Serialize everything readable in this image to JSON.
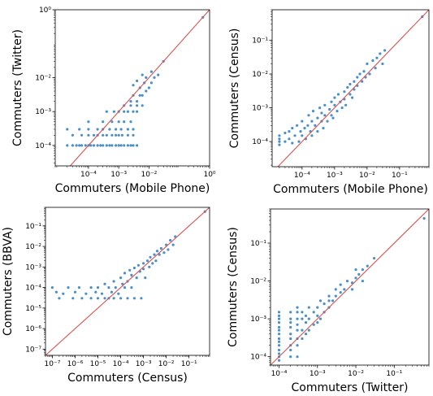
{
  "colors": {
    "points": "#4a90c8",
    "identity_line": "#d9534f",
    "frame": "#000000"
  },
  "chart_data": [
    {
      "type": "scatter",
      "panel": "top-left",
      "xlabel": "Commuters (Mobile Phone)",
      "ylabel": "Commuters (Twitter)",
      "xscale": "log",
      "yscale": "log",
      "xlim": [
        8e-06,
        1
      ],
      "ylim": [
        2.5e-05,
        1
      ],
      "x_ticks": [
        {
          "v": 0.0001,
          "label": "10⁻⁴"
        },
        {
          "v": 0.001,
          "label": "10⁻³"
        },
        {
          "v": 0.01,
          "label": "10⁻²"
        },
        {
          "v": 1,
          "label": "10⁰"
        }
      ],
      "y_ticks": [
        {
          "v": 0.0001,
          "label": "10⁻⁴"
        },
        {
          "v": 0.001,
          "label": "10⁻³"
        },
        {
          "v": 0.01,
          "label": "10⁻²"
        },
        {
          "v": 1,
          "label": "10⁰"
        }
      ],
      "identity_line": true,
      "points": [
        [
          2e-05,
          0.0001
        ],
        [
          3e-05,
          0.0001
        ],
        [
          4e-05,
          0.0001
        ],
        [
          5e-05,
          0.0001
        ],
        [
          6e-05,
          0.0001
        ],
        [
          8e-05,
          0.0001
        ],
        [
          0.0001,
          0.0001
        ],
        [
          0.00012,
          0.0001
        ],
        [
          0.00015,
          0.0001
        ],
        [
          0.0002,
          0.0001
        ],
        [
          0.00025,
          0.0001
        ],
        [
          0.0003,
          0.0001
        ],
        [
          0.0004,
          0.0001
        ],
        [
          0.0005,
          0.0001
        ],
        [
          0.0006,
          0.0001
        ],
        [
          0.0008,
          0.0001
        ],
        [
          0.001,
          0.0001
        ],
        [
          0.0012,
          0.0001
        ],
        [
          0.0015,
          0.0001
        ],
        [
          0.002,
          0.0001
        ],
        [
          0.0025,
          0.0001
        ],
        [
          0.003,
          0.0001
        ],
        [
          0.004,
          0.0001
        ],
        [
          3e-05,
          0.0002
        ],
        [
          6e-05,
          0.0002
        ],
        [
          0.0001,
          0.0002
        ],
        [
          0.00015,
          0.0002
        ],
        [
          0.0002,
          0.0002
        ],
        [
          0.0003,
          0.0002
        ],
        [
          0.0004,
          0.0002
        ],
        [
          0.0006,
          0.0002
        ],
        [
          0.0008,
          0.0002
        ],
        [
          0.001,
          0.0002
        ],
        [
          0.0013,
          0.0002
        ],
        [
          0.002,
          0.0002
        ],
        [
          0.003,
          0.0002
        ],
        [
          2e-05,
          0.0003
        ],
        [
          5e-05,
          0.0003
        ],
        [
          0.0001,
          0.0003
        ],
        [
          0.0002,
          0.0003
        ],
        [
          0.0003,
          0.0003
        ],
        [
          0.0005,
          0.0003
        ],
        [
          0.0008,
          0.0003
        ],
        [
          0.0012,
          0.0003
        ],
        [
          0.002,
          0.0003
        ],
        [
          0.003,
          0.0003
        ],
        [
          0.0001,
          0.0005
        ],
        [
          0.0003,
          0.0005
        ],
        [
          0.0006,
          0.0005
        ],
        [
          0.001,
          0.0005
        ],
        [
          0.0015,
          0.0005
        ],
        [
          0.0025,
          0.0005
        ],
        [
          0.0004,
          0.001
        ],
        [
          0.0007,
          0.001
        ],
        [
          0.001,
          0.001
        ],
        [
          0.0015,
          0.001
        ],
        [
          0.002,
          0.001
        ],
        [
          0.003,
          0.001
        ],
        [
          0.004,
          0.001
        ],
        [
          0.0015,
          0.0015
        ],
        [
          0.0025,
          0.0015
        ],
        [
          0.004,
          0.0015
        ],
        [
          0.006,
          0.0015
        ],
        [
          0.0025,
          0.002
        ],
        [
          0.004,
          0.002
        ],
        [
          0.005,
          0.003
        ],
        [
          0.006,
          0.003
        ],
        [
          0.003,
          0.003
        ],
        [
          0.008,
          0.004
        ],
        [
          0.005,
          0.005
        ],
        [
          0.01,
          0.005
        ],
        [
          0.003,
          0.006
        ],
        [
          0.007,
          0.007
        ],
        [
          0.012,
          0.007
        ],
        [
          0.004,
          0.008
        ],
        [
          0.008,
          0.01
        ],
        [
          0.015,
          0.01
        ],
        [
          0.006,
          0.012
        ],
        [
          0.02,
          0.012
        ],
        [
          0.012,
          0.015
        ],
        [
          0.03,
          0.03
        ],
        [
          0.6,
          0.6
        ]
      ]
    },
    {
      "type": "scatter",
      "panel": "top-right",
      "xlabel": "Commuters (Mobile Phone)",
      "ylabel": "Commuters (Census)",
      "xscale": "log",
      "yscale": "log",
      "xlim": [
        1.2e-05,
        0.8
      ],
      "ylim": [
        1.8e-05,
        0.8
      ],
      "x_ticks": [
        {
          "v": 0.0001,
          "label": "10⁻⁴"
        },
        {
          "v": 0.001,
          "label": "10⁻³"
        },
        {
          "v": 0.01,
          "label": "10⁻²"
        },
        {
          "v": 0.1,
          "label": "10⁻¹"
        }
      ],
      "y_ticks": [
        {
          "v": 0.0001,
          "label": "10⁻⁴"
        },
        {
          "v": 0.001,
          "label": "10⁻³"
        },
        {
          "v": 0.01,
          "label": "10⁻²"
        },
        {
          "v": 0.1,
          "label": "10⁻¹"
        }
      ],
      "identity_line": true,
      "points": [
        [
          2e-05,
          0.0001
        ],
        [
          2e-05,
          0.00012
        ],
        [
          2e-05,
          0.00015
        ],
        [
          2e-05,
          8e-05
        ],
        [
          3e-05,
          0.0001
        ],
        [
          3e-05,
          0.00018
        ],
        [
          4e-05,
          0.00012
        ],
        [
          4e-05,
          0.0002
        ],
        [
          5e-05,
          9e-05
        ],
        [
          5e-05,
          0.00025
        ],
        [
          6e-05,
          0.00015
        ],
        [
          7e-05,
          0.0003
        ],
        [
          8e-05,
          0.0001
        ],
        [
          9e-05,
          0.0002
        ],
        [
          0.0001,
          0.00015
        ],
        [
          0.0001,
          0.0004
        ],
        [
          0.00012,
          0.00025
        ],
        [
          0.00013,
          0.00012
        ],
        [
          0.00015,
          0.0003
        ],
        [
          0.00016,
          0.0006
        ],
        [
          0.00018,
          0.0002
        ],
        [
          0.0002,
          0.0004
        ],
        [
          0.0002,
          0.00015
        ],
        [
          0.00022,
          0.0008
        ],
        [
          0.00025,
          0.0003
        ],
        [
          0.0003,
          0.0005
        ],
        [
          0.0003,
          0.0002
        ],
        [
          0.00035,
          0.001
        ],
        [
          0.0004,
          0.0004
        ],
        [
          0.0004,
          0.0007
        ],
        [
          0.00045,
          0.00025
        ],
        [
          0.0005,
          0.0006
        ],
        [
          0.0005,
          0.0012
        ],
        [
          0.0006,
          0.0004
        ],
        [
          0.0007,
          0.0009
        ],
        [
          0.0008,
          0.0006
        ],
        [
          0.0008,
          0.0015
        ],
        [
          0.0009,
          0.0005
        ],
        [
          0.001,
          0.0012
        ],
        [
          0.001,
          0.002
        ],
        [
          0.0012,
          0.0008
        ],
        [
          0.0013,
          0.0025
        ],
        [
          0.0015,
          0.0015
        ],
        [
          0.0017,
          0.001
        ],
        [
          0.002,
          0.003
        ],
        [
          0.002,
          0.0018
        ],
        [
          0.0022,
          0.0012
        ],
        [
          0.0025,
          0.004
        ],
        [
          0.003,
          0.0025
        ],
        [
          0.003,
          0.005
        ],
        [
          0.0035,
          0.002
        ],
        [
          0.004,
          0.006
        ],
        [
          0.004,
          0.0035
        ],
        [
          0.005,
          0.008
        ],
        [
          0.005,
          0.0045
        ],
        [
          0.006,
          0.01
        ],
        [
          0.007,
          0.006
        ],
        [
          0.008,
          0.012
        ],
        [
          0.009,
          0.008
        ],
        [
          0.01,
          0.02
        ],
        [
          0.012,
          0.01
        ],
        [
          0.015,
          0.025
        ],
        [
          0.018,
          0.015
        ],
        [
          0.02,
          0.03
        ],
        [
          0.025,
          0.04
        ],
        [
          0.03,
          0.02
        ],
        [
          0.035,
          0.05
        ],
        [
          0.5,
          0.5
        ]
      ]
    },
    {
      "type": "scatter",
      "panel": "bottom-left",
      "xlabel": "Commuters (Census)",
      "ylabel": "Commuters (BBVA)",
      "xscale": "log",
      "yscale": "log",
      "xlim": [
        5e-08,
        0.8
      ],
      "ylim": [
        5e-08,
        0.8
      ],
      "x_ticks": [
        {
          "v": 1e-07,
          "label": "10⁻⁷"
        },
        {
          "v": 1e-06,
          "label": "10⁻⁶"
        },
        {
          "v": 1e-05,
          "label": "10⁻⁵"
        },
        {
          "v": 0.0001,
          "label": "10⁻⁴"
        },
        {
          "v": 0.001,
          "label": "10⁻³"
        },
        {
          "v": 0.01,
          "label": "10⁻²"
        },
        {
          "v": 0.1,
          "label": "10⁻¹"
        }
      ],
      "y_ticks": [
        {
          "v": 1e-07,
          "label": "10⁻⁷"
        },
        {
          "v": 1e-06,
          "label": "10⁻⁶"
        },
        {
          "v": 1e-05,
          "label": "10⁻⁵"
        },
        {
          "v": 0.0001,
          "label": "10⁻⁴"
        },
        {
          "v": 0.001,
          "label": "10⁻³"
        },
        {
          "v": 0.01,
          "label": "10⁻²"
        },
        {
          "v": 0.1,
          "label": "10⁻¹"
        }
      ],
      "identity_line": true,
      "points": [
        [
          1e-07,
          0.0001
        ],
        [
          1.5e-07,
          6e-05
        ],
        [
          2e-07,
          3e-05
        ],
        [
          3e-07,
          5e-05
        ],
        [
          5e-07,
          0.0001
        ],
        [
          8e-07,
          3e-05
        ],
        [
          1e-06,
          6e-05
        ],
        [
          1.5e-06,
          0.0001
        ],
        [
          2e-06,
          3e-05
        ],
        [
          3e-06,
          5e-05
        ],
        [
          5e-06,
          3e-05
        ],
        [
          5e-06,
          0.0001
        ],
        [
          8e-06,
          6e-05
        ],
        [
          1e-05,
          3e-05
        ],
        [
          1e-05,
          0.0001
        ],
        [
          1.5e-05,
          5e-05
        ],
        [
          2e-05,
          3e-05
        ],
        [
          2e-05,
          0.00015
        ],
        [
          3e-05,
          0.0001
        ],
        [
          3e-05,
          3e-05
        ],
        [
          4e-05,
          6e-05
        ],
        [
          5e-05,
          0.0002
        ],
        [
          5e-05,
          3e-05
        ],
        [
          6e-05,
          0.0001
        ],
        [
          8e-05,
          5e-05
        ],
        [
          0.0001,
          0.0003
        ],
        [
          0.0001,
          3e-05
        ],
        [
          0.00012,
          0.00015
        ],
        [
          0.00015,
          0.0001
        ],
        [
          0.00015,
          0.0005
        ],
        [
          0.0002,
          3e-05
        ],
        [
          0.0002,
          0.0002
        ],
        [
          0.00025,
          0.0007
        ],
        [
          0.0003,
          0.0001
        ],
        [
          0.0003,
          0.0004
        ],
        [
          0.0004,
          3e-05
        ],
        [
          0.0004,
          0.0009
        ],
        [
          0.0005,
          0.0003
        ],
        [
          0.0006,
          0.0012
        ],
        [
          0.0007,
          0.0006
        ],
        [
          0.0008,
          3e-05
        ],
        [
          0.001,
          0.0015
        ],
        [
          0.001,
          0.0008
        ],
        [
          0.0012,
          0.0003
        ],
        [
          0.0015,
          0.002
        ],
        [
          0.0018,
          0.001
        ],
        [
          0.002,
          0.003
        ],
        [
          0.0025,
          0.0015
        ],
        [
          0.003,
          0.004
        ],
        [
          0.0035,
          0.002
        ],
        [
          0.004,
          0.006
        ],
        [
          0.005,
          0.004
        ],
        [
          0.006,
          0.008
        ],
        [
          0.008,
          0.005
        ],
        [
          0.01,
          0.012
        ],
        [
          0.012,
          0.007
        ],
        [
          0.015,
          0.02
        ],
        [
          0.02,
          0.012
        ],
        [
          0.025,
          0.03
        ],
        [
          0.5,
          0.5
        ]
      ]
    },
    {
      "type": "scatter",
      "panel": "bottom-right",
      "xlabel": "Commuters (Twitter)",
      "ylabel": "Commuters (Census)",
      "xscale": "log",
      "yscale": "log",
      "xlim": [
        6e-05,
        0.8
      ],
      "ylim": [
        6e-05,
        0.8
      ],
      "x_ticks": [
        {
          "v": 0.0001,
          "label": "10⁻⁴"
        },
        {
          "v": 0.001,
          "label": "10⁻³"
        },
        {
          "v": 0.01,
          "label": "10⁻²"
        },
        {
          "v": 0.1,
          "label": "10⁻¹"
        }
      ],
      "y_ticks": [
        {
          "v": 0.0001,
          "label": "10⁻⁴"
        },
        {
          "v": 0.001,
          "label": "10⁻³"
        },
        {
          "v": 0.01,
          "label": "10⁻²"
        },
        {
          "v": 0.1,
          "label": "10⁻¹"
        }
      ],
      "identity_line": true,
      "points": [
        [
          0.0001,
          8e-05
        ],
        [
          0.0001,
          0.0001
        ],
        [
          0.0001,
          0.00012
        ],
        [
          0.0001,
          0.00015
        ],
        [
          0.0001,
          0.0002
        ],
        [
          0.0001,
          0.00025
        ],
        [
          0.0001,
          0.0003
        ],
        [
          0.0001,
          0.0004
        ],
        [
          0.0001,
          0.0005
        ],
        [
          0.0001,
          0.0006
        ],
        [
          0.0001,
          0.0008
        ],
        [
          0.0001,
          0.001
        ],
        [
          0.0001,
          0.0012
        ],
        [
          0.0001,
          0.0015
        ],
        [
          0.0002,
          0.0001
        ],
        [
          0.0002,
          0.00015
        ],
        [
          0.0002,
          0.0002
        ],
        [
          0.0002,
          0.0003
        ],
        [
          0.0002,
          0.0004
        ],
        [
          0.0002,
          0.0006
        ],
        [
          0.0002,
          0.0008
        ],
        [
          0.0002,
          0.001
        ],
        [
          0.0002,
          0.0015
        ],
        [
          0.0003,
          0.0001
        ],
        [
          0.0003,
          0.0002
        ],
        [
          0.0003,
          0.0003
        ],
        [
          0.0003,
          0.0005
        ],
        [
          0.0003,
          0.0007
        ],
        [
          0.0003,
          0.001
        ],
        [
          0.0003,
          0.0015
        ],
        [
          0.0003,
          0.002
        ],
        [
          0.0004,
          0.0003
        ],
        [
          0.0004,
          0.0005
        ],
        [
          0.0004,
          0.001
        ],
        [
          0.0004,
          0.0015
        ],
        [
          0.0005,
          0.0004
        ],
        [
          0.0005,
          0.0008
        ],
        [
          0.0005,
          0.0012
        ],
        [
          0.0006,
          0.0005
        ],
        [
          0.0006,
          0.001
        ],
        [
          0.0006,
          0.002
        ],
        [
          0.0008,
          0.0007
        ],
        [
          0.0008,
          0.0015
        ],
        [
          0.001,
          0.0008
        ],
        [
          0.001,
          0.0012
        ],
        [
          0.001,
          0.002
        ],
        [
          0.0012,
          0.001
        ],
        [
          0.0012,
          0.003
        ],
        [
          0.0015,
          0.0015
        ],
        [
          0.0015,
          0.0025
        ],
        [
          0.002,
          0.002
        ],
        [
          0.002,
          0.004
        ],
        [
          0.002,
          0.003
        ],
        [
          0.0025,
          0.003
        ],
        [
          0.003,
          0.004
        ],
        [
          0.003,
          0.006
        ],
        [
          0.004,
          0.005
        ],
        [
          0.004,
          0.008
        ],
        [
          0.005,
          0.006
        ],
        [
          0.006,
          0.01
        ],
        [
          0.008,
          0.009
        ],
        [
          0.008,
          0.006
        ],
        [
          0.01,
          0.012
        ],
        [
          0.01,
          0.02
        ],
        [
          0.012,
          0.015
        ],
        [
          0.015,
          0.02
        ],
        [
          0.015,
          0.01
        ],
        [
          0.02,
          0.025
        ],
        [
          0.03,
          0.04
        ],
        [
          0.6,
          0.45
        ]
      ]
    }
  ]
}
